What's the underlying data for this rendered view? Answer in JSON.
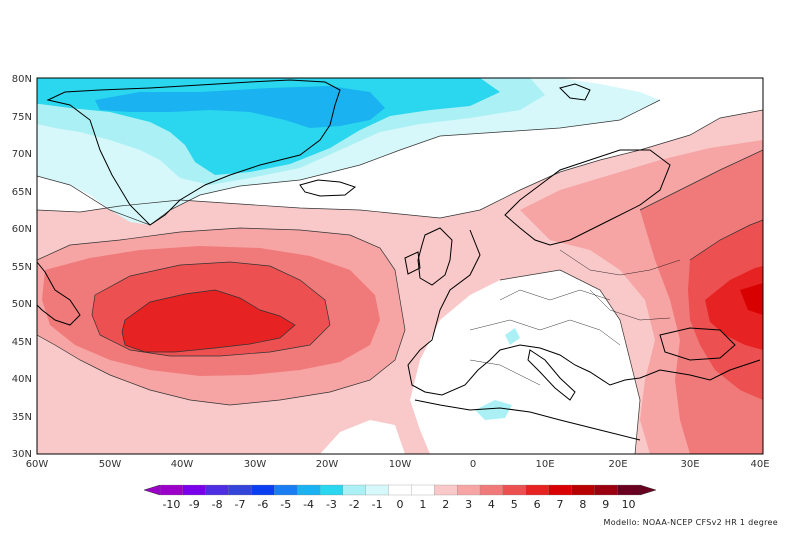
{
  "map": {
    "lat_labels": [
      "80N",
      "75N",
      "70N",
      "65N",
      "60N",
      "55N",
      "50N",
      "45N",
      "40N",
      "35N",
      "30N"
    ],
    "lon_labels": [
      "60W",
      "50W",
      "40W",
      "30W",
      "20W",
      "10W",
      "0",
      "10E",
      "20E",
      "30E",
      "40E"
    ],
    "extent": {
      "lon_min": -60,
      "lon_max": 40,
      "lat_min": 30,
      "lat_max": 80
    },
    "contour_levels": [
      -10,
      -9,
      -8,
      -7,
      -6,
      -5,
      -4,
      -3,
      -2,
      -1,
      0,
      1,
      2,
      3,
      4,
      5,
      6,
      7,
      8,
      9,
      10
    ]
  },
  "colorbar": {
    "labels": [
      "-10",
      "-9",
      "-8",
      "-7",
      "-6",
      "-5",
      "-4",
      "-3",
      "-2",
      "-1",
      "0",
      "1",
      "2",
      "3",
      "4",
      "5",
      "6",
      "7",
      "8",
      "9",
      "10"
    ],
    "colors": [
      "#9a00c8",
      "#7b00ea",
      "#4d2ee0",
      "#3245d8",
      "#0a3ef0",
      "#1a7ef2",
      "#1ab2f0",
      "#2ad7ee",
      "#aaf0f5",
      "#d6f8fa",
      "#ffffff",
      "#ffffff",
      "#f9c8c8",
      "#f6a4a4",
      "#f07a7a",
      "#ec5050",
      "#e62222",
      "#d80000",
      "#b80000",
      "#9a0010",
      "#6a0020"
    ]
  },
  "credit": "Modello: NOAA-NCEP CFSv2 HR 1 degree"
}
